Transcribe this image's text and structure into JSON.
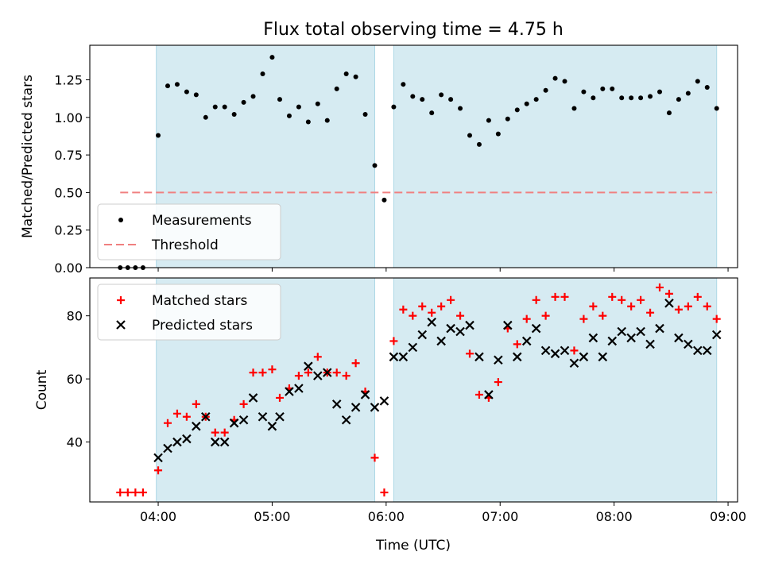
{
  "figure": {
    "title": "Flux total observing time = 4.75 h",
    "xlabel": "Time (UTC)",
    "x_ticks": [
      "04:00",
      "05:00",
      "06:00",
      "07:00",
      "08:00",
      "09:00"
    ]
  },
  "colors": {
    "shade": "#add8e6",
    "measurement": "#000000",
    "threshold": "#f08080",
    "matched": "#ff0000",
    "predicted": "#000000"
  },
  "chart_data": [
    {
      "type": "scatter",
      "ylabel": "Matched/Predicted stars",
      "xlim": [
        "03:24",
        "09:05"
      ],
      "ylim": [
        0,
        1.48
      ],
      "y_ticks": [
        "0.00",
        "0.25",
        "0.50",
        "0.75",
        "1.00",
        "1.25"
      ],
      "legend": {
        "position": "lower-left",
        "items": [
          "Measurements",
          "Threshold"
        ]
      },
      "shaded_intervals": [
        [
          "03:59",
          "05:54"
        ],
        [
          "06:04",
          "08:54"
        ]
      ],
      "threshold": {
        "y": 0.5,
        "x_range": [
          "03:40",
          "08:54"
        ]
      },
      "series": [
        {
          "name": "Measurements",
          "points": [
            [
              "03:40",
              0.0
            ],
            [
              "03:44",
              0.0
            ],
            [
              "03:48",
              0.0
            ],
            [
              "03:52",
              0.0
            ],
            [
              "04:00",
              0.88
            ],
            [
              "04:05",
              1.21
            ],
            [
              "04:10",
              1.22
            ],
            [
              "04:15",
              1.17
            ],
            [
              "04:20",
              1.15
            ],
            [
              "04:25",
              1.0
            ],
            [
              "04:30",
              1.07
            ],
            [
              "04:35",
              1.07
            ],
            [
              "04:40",
              1.02
            ],
            [
              "04:45",
              1.1
            ],
            [
              "04:50",
              1.14
            ],
            [
              "04:55",
              1.29
            ],
            [
              "05:00",
              1.4
            ],
            [
              "05:04",
              1.12
            ],
            [
              "05:09",
              1.01
            ],
            [
              "05:14",
              1.07
            ],
            [
              "05:19",
              0.97
            ],
            [
              "05:24",
              1.09
            ],
            [
              "05:29",
              0.98
            ],
            [
              "05:34",
              1.19
            ],
            [
              "05:39",
              1.29
            ],
            [
              "05:44",
              1.27
            ],
            [
              "05:49",
              1.02
            ],
            [
              "05:54",
              0.68
            ],
            [
              "05:59",
              0.45
            ],
            [
              "06:04",
              1.07
            ],
            [
              "06:09",
              1.22
            ],
            [
              "06:14",
              1.14
            ],
            [
              "06:19",
              1.12
            ],
            [
              "06:24",
              1.03
            ],
            [
              "06:29",
              1.15
            ],
            [
              "06:34",
              1.12
            ],
            [
              "06:39",
              1.06
            ],
            [
              "06:44",
              0.88
            ],
            [
              "06:49",
              0.82
            ],
            [
              "06:54",
              0.98
            ],
            [
              "06:59",
              0.89
            ],
            [
              "07:04",
              0.99
            ],
            [
              "07:09",
              1.05
            ],
            [
              "07:14",
              1.09
            ],
            [
              "07:19",
              1.12
            ],
            [
              "07:24",
              1.18
            ],
            [
              "07:29",
              1.26
            ],
            [
              "07:34",
              1.24
            ],
            [
              "07:39",
              1.06
            ],
            [
              "07:44",
              1.17
            ],
            [
              "07:49",
              1.13
            ],
            [
              "07:54",
              1.19
            ],
            [
              "07:59",
              1.19
            ],
            [
              "08:04",
              1.13
            ],
            [
              "08:09",
              1.13
            ],
            [
              "08:14",
              1.13
            ],
            [
              "08:19",
              1.14
            ],
            [
              "08:24",
              1.17
            ],
            [
              "08:29",
              1.03
            ],
            [
              "08:34",
              1.12
            ],
            [
              "08:39",
              1.16
            ],
            [
              "08:44",
              1.24
            ],
            [
              "08:49",
              1.2
            ],
            [
              "08:54",
              1.06
            ]
          ]
        }
      ]
    },
    {
      "type": "scatter",
      "ylabel": "Count",
      "xlim": [
        "03:24",
        "09:05"
      ],
      "ylim": [
        21,
        92
      ],
      "y_ticks": [
        "40",
        "60",
        "80"
      ],
      "legend": {
        "position": "upper-left",
        "items": [
          "Matched stars",
          "Predicted stars"
        ]
      },
      "shaded_intervals": [
        [
          "03:59",
          "05:54"
        ],
        [
          "06:04",
          "08:54"
        ]
      ],
      "series": [
        {
          "name": "Matched stars",
          "marker": "plus",
          "points": [
            [
              "03:40",
              24
            ],
            [
              "03:44",
              24
            ],
            [
              "03:48",
              24
            ],
            [
              "03:52",
              24
            ],
            [
              "04:00",
              31
            ],
            [
              "04:05",
              46
            ],
            [
              "04:10",
              49
            ],
            [
              "04:15",
              48
            ],
            [
              "04:20",
              52
            ],
            [
              "04:25",
              48
            ],
            [
              "04:30",
              43
            ],
            [
              "04:35",
              43
            ],
            [
              "04:40",
              47
            ],
            [
              "04:45",
              52
            ],
            [
              "04:50",
              62
            ],
            [
              "04:55",
              62
            ],
            [
              "05:00",
              63
            ],
            [
              "05:04",
              54
            ],
            [
              "05:09",
              57
            ],
            [
              "05:14",
              61
            ],
            [
              "05:19",
              62
            ],
            [
              "05:24",
              67
            ],
            [
              "05:29",
              62
            ],
            [
              "05:34",
              62
            ],
            [
              "05:39",
              61
            ],
            [
              "05:44",
              65
            ],
            [
              "05:49",
              56
            ],
            [
              "05:54",
              35
            ],
            [
              "05:59",
              24
            ],
            [
              "06:04",
              72
            ],
            [
              "06:09",
              82
            ],
            [
              "06:14",
              80
            ],
            [
              "06:19",
              83
            ],
            [
              "06:24",
              81
            ],
            [
              "06:29",
              83
            ],
            [
              "06:34",
              85
            ],
            [
              "06:39",
              80
            ],
            [
              "06:44",
              68
            ],
            [
              "06:49",
              55
            ],
            [
              "06:54",
              54
            ],
            [
              "06:59",
              59
            ],
            [
              "07:04",
              76
            ],
            [
              "07:09",
              71
            ],
            [
              "07:14",
              79
            ],
            [
              "07:19",
              85
            ],
            [
              "07:24",
              80
            ],
            [
              "07:29",
              86
            ],
            [
              "07:34",
              86
            ],
            [
              "07:39",
              69
            ],
            [
              "07:44",
              79
            ],
            [
              "07:49",
              83
            ],
            [
              "07:54",
              80
            ],
            [
              "07:59",
              86
            ],
            [
              "08:04",
              85
            ],
            [
              "08:09",
              83
            ],
            [
              "08:14",
              85
            ],
            [
              "08:19",
              81
            ],
            [
              "08:24",
              89
            ],
            [
              "08:29",
              87
            ],
            [
              "08:34",
              82
            ],
            [
              "08:39",
              83
            ],
            [
              "08:44",
              86
            ],
            [
              "08:49",
              83
            ],
            [
              "08:54",
              79
            ]
          ]
        },
        {
          "name": "Predicted stars",
          "marker": "x",
          "points": [
            [
              "04:00",
              35
            ],
            [
              "04:05",
              38
            ],
            [
              "04:10",
              40
            ],
            [
              "04:15",
              41
            ],
            [
              "04:20",
              45
            ],
            [
              "04:25",
              48
            ],
            [
              "04:30",
              40
            ],
            [
              "04:35",
              40
            ],
            [
              "04:40",
              46
            ],
            [
              "04:45",
              47
            ],
            [
              "04:50",
              54
            ],
            [
              "04:55",
              48
            ],
            [
              "05:00",
              45
            ],
            [
              "05:04",
              48
            ],
            [
              "05:09",
              56
            ],
            [
              "05:14",
              57
            ],
            [
              "05:19",
              64
            ],
            [
              "05:24",
              61
            ],
            [
              "05:29",
              62
            ],
            [
              "05:34",
              52
            ],
            [
              "05:39",
              47
            ],
            [
              "05:44",
              51
            ],
            [
              "05:49",
              55
            ],
            [
              "05:54",
              51
            ],
            [
              "05:59",
              53
            ],
            [
              "06:04",
              67
            ],
            [
              "06:09",
              67
            ],
            [
              "06:14",
              70
            ],
            [
              "06:19",
              74
            ],
            [
              "06:24",
              78
            ],
            [
              "06:29",
              72
            ],
            [
              "06:34",
              76
            ],
            [
              "06:39",
              75
            ],
            [
              "06:44",
              77
            ],
            [
              "06:49",
              67
            ],
            [
              "06:54",
              55
            ],
            [
              "06:59",
              66
            ],
            [
              "07:04",
              77
            ],
            [
              "07:09",
              67
            ],
            [
              "07:14",
              72
            ],
            [
              "07:19",
              76
            ],
            [
              "07:24",
              69
            ],
            [
              "07:29",
              68
            ],
            [
              "07:34",
              69
            ],
            [
              "07:39",
              65
            ],
            [
              "07:44",
              67
            ],
            [
              "07:49",
              73
            ],
            [
              "07:54",
              67
            ],
            [
              "07:59",
              72
            ],
            [
              "08:04",
              75
            ],
            [
              "08:09",
              73
            ],
            [
              "08:14",
              75
            ],
            [
              "08:19",
              71
            ],
            [
              "08:24",
              76
            ],
            [
              "08:29",
              84
            ],
            [
              "08:34",
              73
            ],
            [
              "08:39",
              71
            ],
            [
              "08:44",
              69
            ],
            [
              "08:49",
              69
            ],
            [
              "08:54",
              74
            ]
          ]
        }
      ]
    }
  ]
}
